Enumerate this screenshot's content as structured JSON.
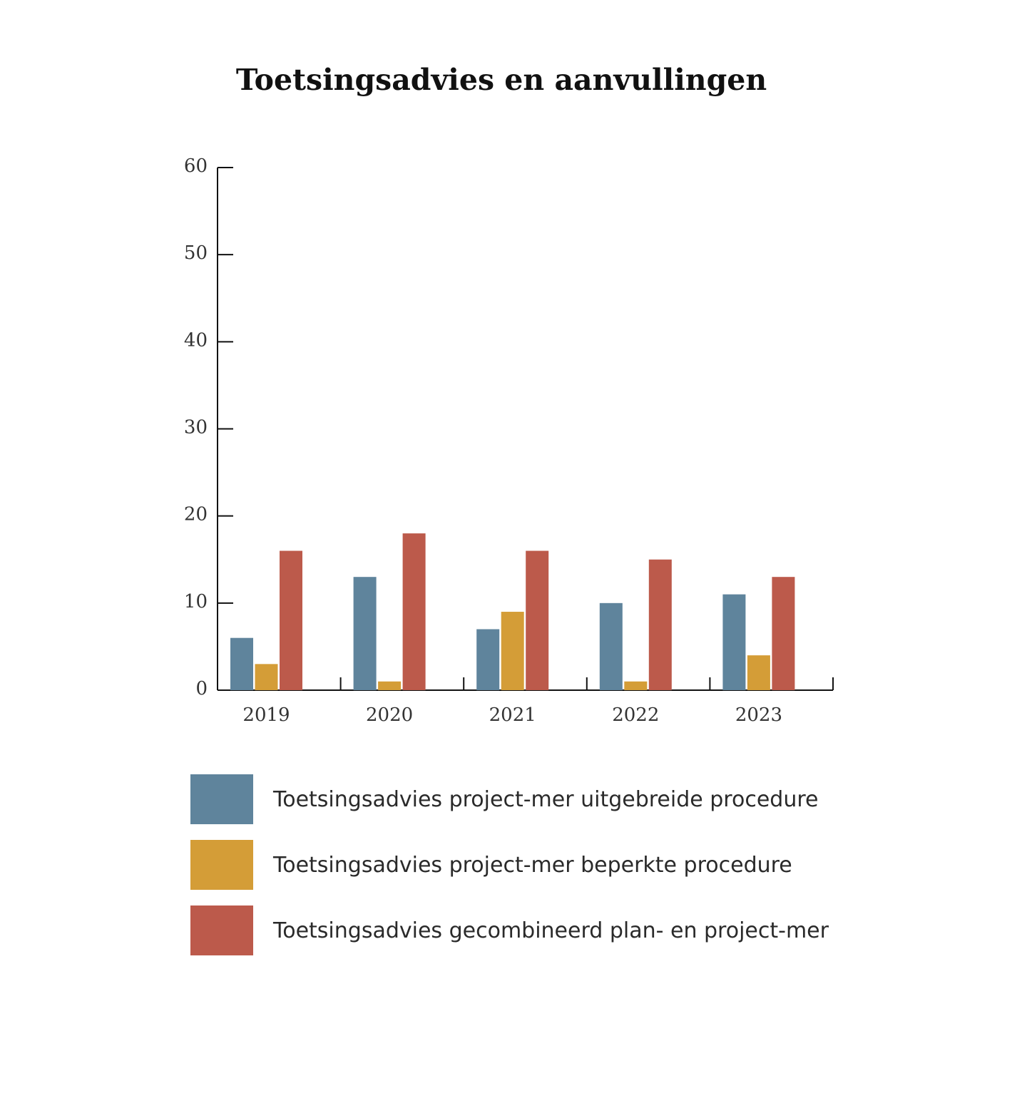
{
  "chart_data": {
    "type": "bar",
    "title": "Toetsingsadvies en aanvullingen",
    "xlabel": "",
    "ylabel": "",
    "ylim": [
      0,
      60
    ],
    "yticks": [
      0,
      10,
      20,
      30,
      40,
      50,
      60
    ],
    "grid": false,
    "legend_position": "bottom",
    "categories": [
      "2019",
      "2020",
      "2021",
      "2022",
      "2023"
    ],
    "series": [
      {
        "name": "Toetsingsadvies project-mer uitgebreide procedure",
        "color": "#5f849c",
        "values": [
          6,
          13,
          7,
          10,
          11
        ]
      },
      {
        "name": "Toetsingsadvies project-mer beperkte procedure",
        "color": "#d49d37",
        "values": [
          3,
          1,
          9,
          1,
          4
        ]
      },
      {
        "name": "Toetsingsadvies gecombineerd plan- en project-mer",
        "color": "#bc5a4b",
        "values": [
          16,
          18,
          16,
          15,
          13
        ]
      }
    ]
  }
}
